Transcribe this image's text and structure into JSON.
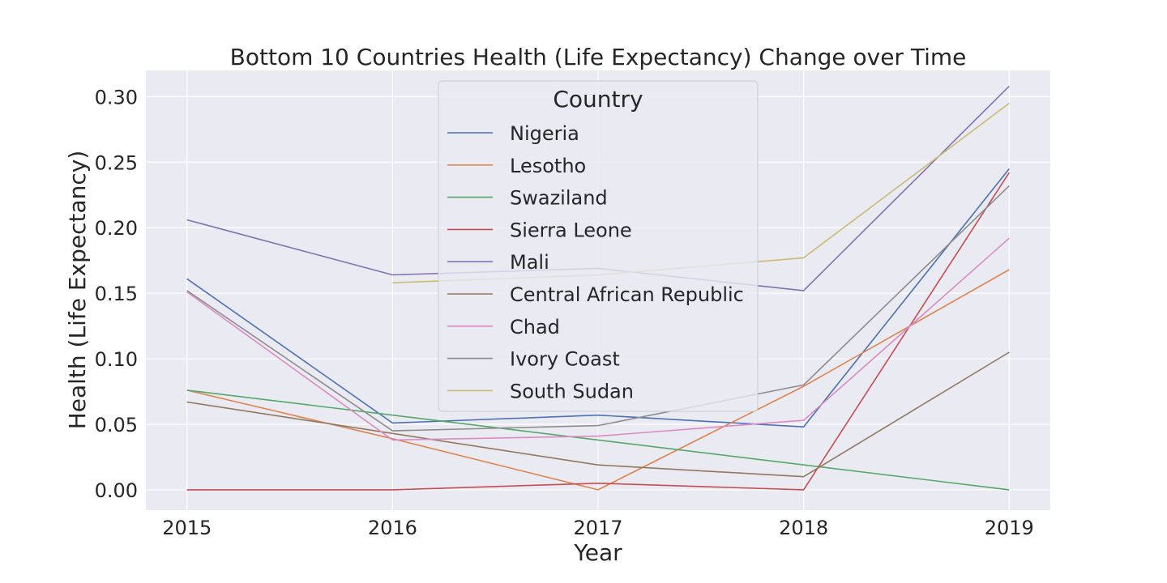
{
  "chart_data": {
    "type": "line",
    "title": "Bottom 10 Countries Health (Life Expectancy) Change over Time",
    "xlabel": "Year",
    "ylabel": "Health (Life Expectancy)",
    "x": [
      2015,
      2016,
      2017,
      2018,
      2019
    ],
    "x_tick_labels": [
      "2015",
      "2016",
      "2017",
      "2018",
      "2019"
    ],
    "y_ticks": [
      0.0,
      0.05,
      0.1,
      0.15,
      0.2,
      0.25,
      0.3
    ],
    "y_tick_labels": [
      "0.00",
      "0.05",
      "0.10",
      "0.15",
      "0.20",
      "0.25",
      "0.30"
    ],
    "xlim": [
      2014.8,
      2019.2
    ],
    "ylim": [
      -0.0155,
      0.32
    ],
    "grid": true,
    "legend": {
      "title": "Country",
      "placement": "upper center"
    },
    "series": [
      {
        "name": "Nigeria",
        "color": "#4c72b0",
        "values": [
          0.161,
          0.051,
          0.057,
          0.048,
          0.245
        ]
      },
      {
        "name": "Lesotho",
        "color": "#dd8452",
        "values": [
          0.076,
          0.039,
          0.0,
          0.079,
          0.168
        ]
      },
      {
        "name": "Swaziland",
        "color": "#55a868",
        "values": [
          0.076,
          null,
          null,
          null,
          0.0
        ]
      },
      {
        "name": "Sierra Leone",
        "color": "#c44e52",
        "values": [
          0.0,
          0.0,
          0.005,
          0.0,
          0.242
        ]
      },
      {
        "name": "Mali",
        "color": "#8172b3",
        "values": [
          0.206,
          0.164,
          0.169,
          0.152,
          0.308
        ]
      },
      {
        "name": "Central African Republic",
        "color": "#937860",
        "values": [
          0.067,
          0.043,
          0.019,
          0.01,
          0.105
        ]
      },
      {
        "name": "Chad",
        "color": "#da8bc3",
        "values": [
          0.151,
          0.038,
          0.041,
          0.053,
          0.192
        ]
      },
      {
        "name": "Ivory Coast",
        "color": "#8c8c8c",
        "values": [
          0.152,
          0.045,
          0.049,
          0.08,
          0.232
        ]
      },
      {
        "name": "South Sudan",
        "color": "#ccb974",
        "values": [
          null,
          0.158,
          0.164,
          0.177,
          0.295
        ]
      }
    ]
  }
}
